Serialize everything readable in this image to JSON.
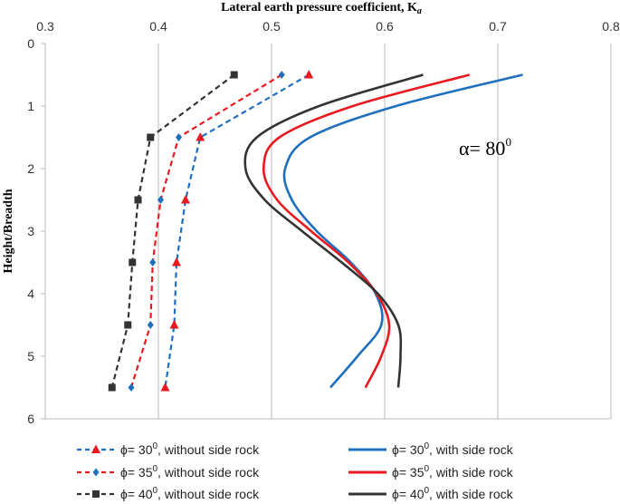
{
  "chart_data": {
    "type": "line",
    "title": "Lateral earth pressure coefficient, K",
    "title_subscript": "a",
    "xlabel": "Lateral earth pressure coefficient, K",
    "ylabel": "Height/Breadth",
    "xlim": [
      0.3,
      0.8
    ],
    "ylim": [
      0,
      6
    ],
    "y_inverted": true,
    "x_axis_position": "top",
    "x_ticks": [
      "0.3",
      "0.4",
      "0.5",
      "0.6",
      "0.7",
      "0.8"
    ],
    "y_ticks": [
      "0",
      "1",
      "2",
      "3",
      "4",
      "5",
      "6"
    ],
    "grid": "vertical",
    "legend_position": "bottom",
    "annotation": {
      "text": "α= 80",
      "superscript": "0"
    },
    "colors": {
      "phi30": "#1f6fbf",
      "phi35": "#e8191f",
      "phi40": "#333333",
      "grid": "#bbbbbb"
    },
    "series": [
      {
        "name": "ϕ= 30",
        "name_sup": "0",
        "name_suffix": ", without side rock",
        "style": "dashed",
        "marker": "triangle",
        "color": "#1f6fbf",
        "marker_color": "#e8191f",
        "points": [
          [
            0.533,
            0.5
          ],
          [
            0.437,
            1.5
          ],
          [
            0.424,
            2.5
          ],
          [
            0.416,
            3.5
          ],
          [
            0.414,
            4.5
          ],
          [
            0.406,
            5.5
          ]
        ]
      },
      {
        "name": "ϕ= 35",
        "name_sup": "0",
        "name_suffix": ", without side rock",
        "style": "dashed",
        "marker": "diamond",
        "color": "#e8191f",
        "marker_color": "#1f6fbf",
        "points": [
          [
            0.509,
            0.5
          ],
          [
            0.418,
            1.5
          ],
          [
            0.402,
            2.5
          ],
          [
            0.395,
            3.5
          ],
          [
            0.393,
            4.5
          ],
          [
            0.376,
            5.5
          ]
        ]
      },
      {
        "name": "ϕ= 40",
        "name_sup": "0",
        "name_suffix": ", without side rock",
        "style": "dashed",
        "marker": "square",
        "color": "#333333",
        "marker_color": "#333333",
        "points": [
          [
            0.467,
            0.5
          ],
          [
            0.393,
            1.5
          ],
          [
            0.382,
            2.5
          ],
          [
            0.377,
            3.5
          ],
          [
            0.373,
            4.5
          ],
          [
            0.359,
            5.5
          ]
        ]
      },
      {
        "name": "ϕ= 30",
        "name_sup": "0",
        "name_suffix": ", with side rock",
        "style": "solid",
        "marker": "none",
        "color": "#1f6fbf",
        "points": [
          [
            0.722,
            0.5
          ],
          [
            0.61,
            1.0
          ],
          [
            0.534,
            1.5
          ],
          [
            0.512,
            2.0
          ],
          [
            0.518,
            2.5
          ],
          [
            0.54,
            3.0
          ],
          [
            0.57,
            3.5
          ],
          [
            0.592,
            4.0
          ],
          [
            0.597,
            4.5
          ],
          [
            0.576,
            5.0
          ],
          [
            0.552,
            5.5
          ]
        ]
      },
      {
        "name": "ϕ= 35",
        "name_sup": "0",
        "name_suffix": ", with side rock",
        "style": "solid",
        "marker": "none",
        "color": "#e8191f",
        "points": [
          [
            0.675,
            0.5
          ],
          [
            0.572,
            1.0
          ],
          [
            0.507,
            1.5
          ],
          [
            0.493,
            2.0
          ],
          [
            0.505,
            2.5
          ],
          [
            0.535,
            3.0
          ],
          [
            0.568,
            3.5
          ],
          [
            0.593,
            4.0
          ],
          [
            0.604,
            4.5
          ],
          [
            0.597,
            5.0
          ],
          [
            0.583,
            5.5
          ]
        ]
      },
      {
        "name": "ϕ= 40",
        "name_sup": "0",
        "name_suffix": ", with side rock",
        "style": "solid",
        "marker": "none",
        "color": "#333333",
        "points": [
          [
            0.634,
            0.5
          ],
          [
            0.542,
            1.0
          ],
          [
            0.487,
            1.5
          ],
          [
            0.477,
            2.0
          ],
          [
            0.494,
            2.5
          ],
          [
            0.527,
            3.0
          ],
          [
            0.562,
            3.5
          ],
          [
            0.594,
            4.0
          ],
          [
            0.612,
            4.5
          ],
          [
            0.614,
            5.0
          ],
          [
            0.612,
            5.5
          ]
        ]
      }
    ]
  }
}
